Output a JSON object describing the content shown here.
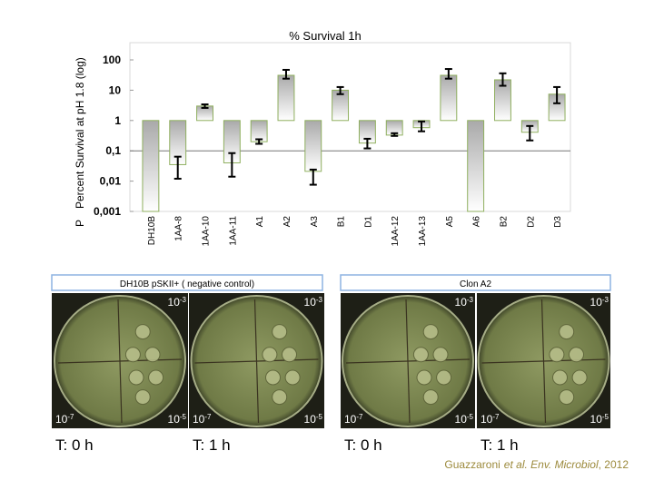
{
  "chart_data": {
    "type": "bar",
    "title": "% Survival 1h",
    "y_label": "Percent Survival at pH 1.8 (log)",
    "y_label_prefix": "P",
    "categories": [
      "DH10B",
      "1AA-8",
      "1AA-10",
      "1AA-11",
      "A1",
      "A2",
      "A3",
      "B1",
      "D1",
      "1AA-12",
      "1AA-13",
      "A5",
      "A6",
      "B2",
      "D2",
      "D3"
    ],
    "values": [
      0.001,
      0.035,
      3,
      0.04,
      0.2,
      31,
      0.021,
      10,
      0.18,
      0.33,
      0.58,
      31,
      0.001,
      22,
      0.41,
      7.4
    ],
    "error_low": [
      null,
      0.012,
      2.6,
      0.014,
      0.17,
      24,
      0.0076,
      7.4,
      0.12,
      0.31,
      0.44,
      24,
      null,
      14,
      0.22,
      3.7
    ],
    "error_high": [
      null,
      0.064,
      3.4,
      0.084,
      0.24,
      47,
      0.024,
      12.7,
      0.25,
      0.38,
      0.93,
      50,
      null,
      36,
      0.66,
      12.7
    ],
    "color": "#8faf5f",
    "bar_base": 1,
    "log_scale": true,
    "reference_line": 0.1,
    "ylim": [
      0.001,
      100
    ],
    "yticks": [
      100,
      10,
      1,
      {
        "value": 0.1,
        "label": "0,1"
      },
      {
        "value": 0.01,
        "label": "0,01"
      },
      {
        "value": 0.001,
        "label": "0,001"
      }
    ]
  },
  "panels": [
    {
      "header": "DH10B pSKII+ ( negative control)",
      "plates": [
        {
          "time": "T: 0 h",
          "top": {
            "base": "10",
            "exp": "-3"
          },
          "bottom_left": {
            "base": "10",
            "exp": "-7"
          },
          "bottom_right": {
            "base": "10",
            "exp": "-5"
          }
        },
        {
          "time": "T: 1 h",
          "top": {
            "base": "10",
            "exp": "-3"
          },
          "bottom_left": {
            "base": "10",
            "exp": "-7"
          },
          "bottom_right": {
            "base": "10",
            "exp": "-5"
          }
        }
      ]
    },
    {
      "header": "Clon A2",
      "plates": [
        {
          "time": "T: 0 h",
          "top": {
            "base": "10",
            "exp": "-3"
          },
          "bottom_left": {
            "base": "10",
            "exp": "-7"
          },
          "bottom_right": {
            "base": "10",
            "exp": "-5"
          }
        },
        {
          "time": "T: 1 h",
          "top": {
            "base": "10",
            "exp": "-3"
          },
          "bottom_left": {
            "base": "10",
            "exp": "-7"
          },
          "bottom_right": {
            "base": "10",
            "exp": "-5"
          }
        }
      ]
    }
  ],
  "citation": {
    "author": "Guazzaroni",
    "journal": "et al. Env. Microbiol",
    "year": ", 2012"
  }
}
